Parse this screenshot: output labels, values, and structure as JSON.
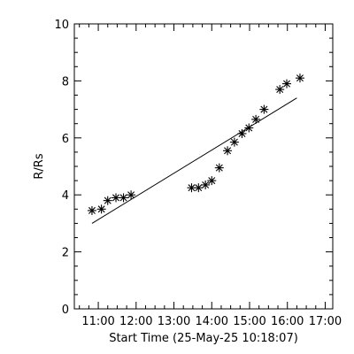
{
  "chart_data": {
    "type": "scatter",
    "xlabel": "Start Time (25-May-25 10:18:07)",
    "ylabel": "R/Rs",
    "xlim": [
      "10:22",
      "17:12"
    ],
    "ylim": [
      0,
      10
    ],
    "x_ticks": [
      "11:00",
      "12:00",
      "13:00",
      "14:00",
      "15:00",
      "16:00",
      "17:00"
    ],
    "y_ticks": [
      0,
      2,
      4,
      6,
      8,
      10
    ],
    "grid": false,
    "series": [
      {
        "marker": "asterisk",
        "points": [
          {
            "x": "10:50",
            "y": 3.45
          },
          {
            "x": "11:05",
            "y": 3.5
          },
          {
            "x": "11:15",
            "y": 3.8
          },
          {
            "x": "11:28",
            "y": 3.9
          },
          {
            "x": "11:40",
            "y": 3.9
          },
          {
            "x": "11:52",
            "y": 4.0
          },
          {
            "x": "13:28",
            "y": 4.25
          },
          {
            "x": "13:39",
            "y": 4.25
          },
          {
            "x": "13:50",
            "y": 4.35
          },
          {
            "x": "14:00",
            "y": 4.5
          },
          {
            "x": "14:12",
            "y": 4.95
          },
          {
            "x": "14:25",
            "y": 5.55
          },
          {
            "x": "14:36",
            "y": 5.85
          },
          {
            "x": "14:48",
            "y": 6.15
          },
          {
            "x": "14:59",
            "y": 6.35
          },
          {
            "x": "15:10",
            "y": 6.65
          },
          {
            "x": "15:23",
            "y": 7.0
          },
          {
            "x": "15:48",
            "y": 7.7
          },
          {
            "x": "15:59",
            "y": 7.9
          },
          {
            "x": "16:20",
            "y": 8.1
          }
        ]
      }
    ],
    "fit_line": {
      "x": [
        "10:50",
        "16:15"
      ],
      "y": [
        3.0,
        7.4
      ]
    }
  }
}
